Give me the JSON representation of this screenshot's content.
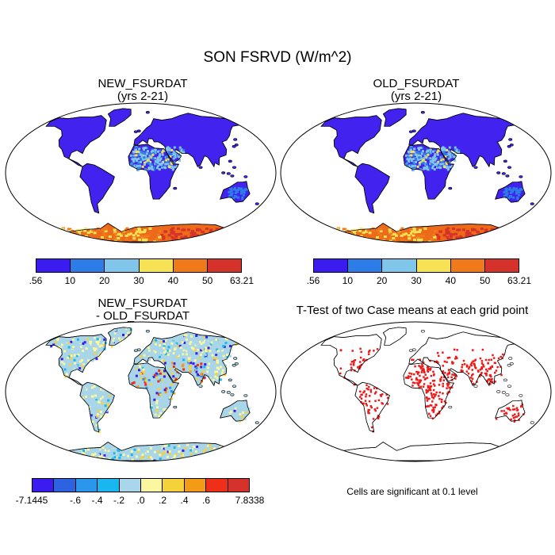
{
  "title": "SON FSRVD (W/m^2)",
  "panels": {
    "new": {
      "title_line1": "NEW_FSURDAT",
      "title_line2": "(yrs 2-21)"
    },
    "old": {
      "title_line1": "OLD_FSURDAT",
      "title_line2": "(yrs 2-21)"
    },
    "diff": {
      "title_line1": "NEW_FSURDAT",
      "title_line2": "- OLD_FSURDAT"
    },
    "ttest": {
      "title": "T-Test of two Case means at each grid point",
      "note": "Cells are significant at 0.1 level"
    }
  },
  "colorbar_main": {
    "colors": [
      "#3b1cf0",
      "#2d7de8",
      "#7fc6ea",
      "#f7e255",
      "#f07a1a",
      "#d4322a"
    ],
    "labels": [
      ".56",
      "10",
      "20",
      "30",
      "40",
      "50",
      "63.21"
    ]
  },
  "colorbar_diff": {
    "colors": [
      "#3b1cf0",
      "#2d62e0",
      "#2a96ec",
      "#1ab6f0",
      "#a9d6ea",
      "#fbf6a0",
      "#f7d13a",
      "#f39a17",
      "#ef2f1a",
      "#d4322a"
    ],
    "labels": [
      "-7.1445",
      "-.6",
      "-.4",
      "-.2",
      ".0",
      ".2",
      ".4",
      ".6",
      "7.8338"
    ]
  },
  "colors": {
    "land_main": "#4122ee",
    "antarctic_main": "#ec6a1a",
    "significant": "#ee1a1a",
    "diff_base": "#a8d5e8"
  }
}
